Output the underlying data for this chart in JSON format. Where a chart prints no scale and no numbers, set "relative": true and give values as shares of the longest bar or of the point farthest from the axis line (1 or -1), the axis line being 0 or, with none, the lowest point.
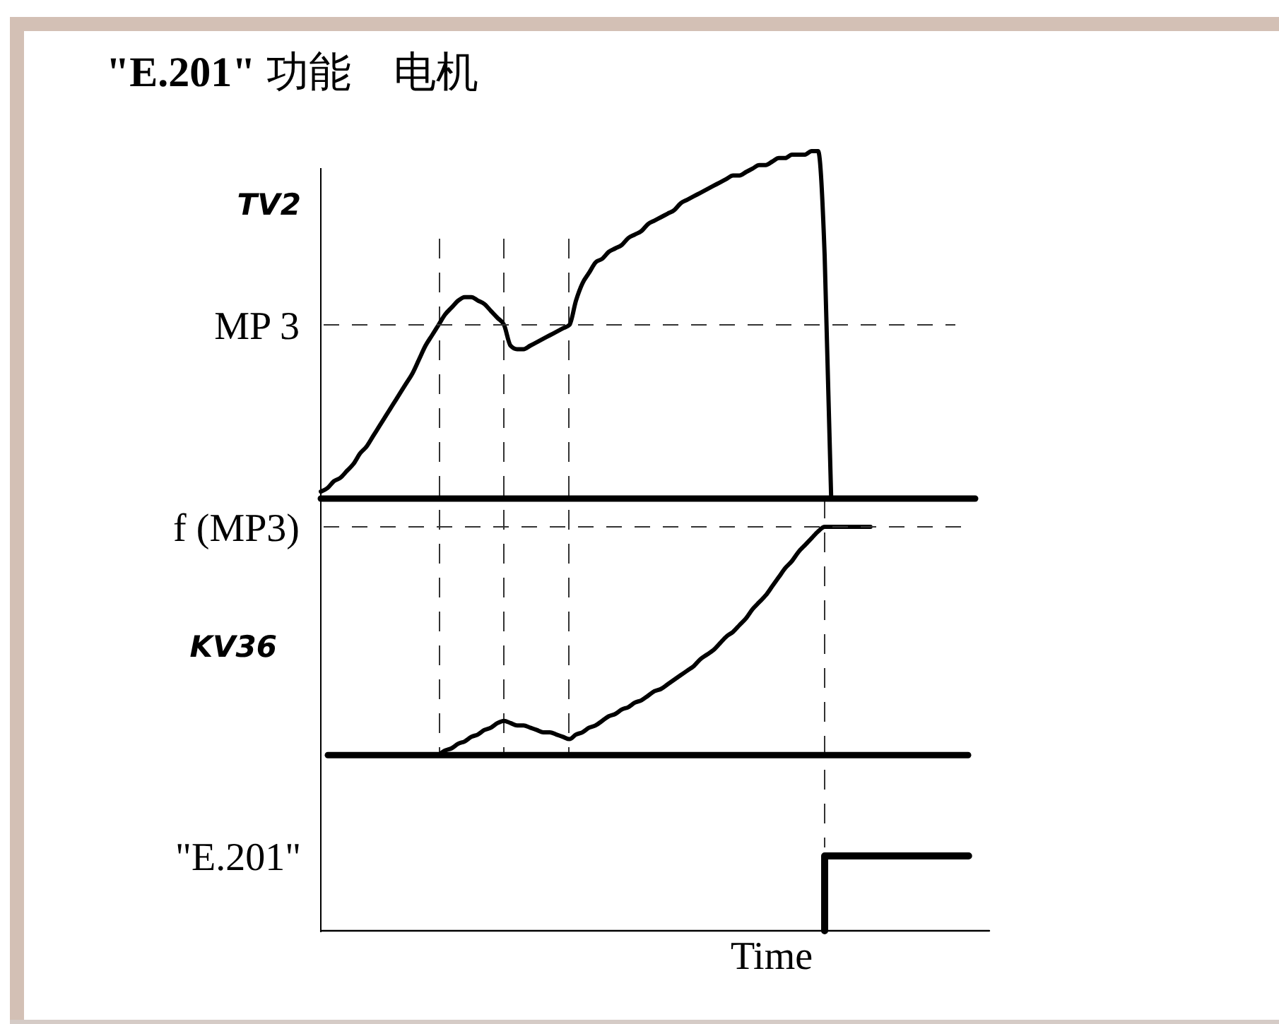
{
  "chart_data": [
    {
      "type": "line",
      "title": "\"E.201\" 功能　电机",
      "ylabel": "TV2",
      "relative": true,
      "categories": [
        null,
        null,
        null,
        null,
        null,
        null,
        null,
        null,
        null,
        null,
        null,
        null,
        null,
        null,
        null,
        null,
        null,
        null,
        null,
        null,
        null,
        null,
        null,
        null,
        null,
        null,
        null,
        null,
        null,
        null,
        null,
        null,
        null,
        null,
        null,
        null,
        null,
        null,
        null,
        null,
        null,
        null,
        null,
        null,
        null,
        null,
        null,
        null,
        null,
        null,
        null,
        null,
        null,
        null,
        null,
        null,
        null,
        null,
        null,
        null,
        null,
        null,
        null,
        null,
        null,
        null,
        null,
        null,
        null,
        null,
        null,
        null,
        null,
        null,
        null,
        null,
        null,
        null,
        null,
        null,
        null,
        null,
        null,
        null,
        null,
        null,
        null,
        null,
        null,
        null,
        null,
        null,
        null,
        null,
        null,
        null,
        null,
        null,
        null,
        null,
        null
      ],
      "series": [
        {
          "color": "#000000",
          "values": [
            0.02,
            0.03,
            0.05,
            0.06,
            0.08,
            0.1,
            0.13,
            0.15,
            0.18,
            0.21,
            0.24,
            0.27,
            0.3,
            0.33,
            0.36,
            0.4,
            0.44,
            0.47,
            0.5,
            0.53,
            0.55,
            0.57,
            0.58,
            0.58,
            0.57,
            0.56,
            0.54,
            0.52,
            0.5,
            0.44,
            0.43,
            0.43,
            0.44,
            0.45,
            0.46,
            0.47,
            0.48,
            0.49,
            0.5,
            0.57,
            0.62,
            0.65,
            0.68,
            0.69,
            0.71,
            0.72,
            0.73,
            0.75,
            0.76,
            0.77,
            0.79,
            0.8,
            0.81,
            0.82,
            0.83,
            0.85,
            0.86,
            0.87,
            0.88,
            0.89,
            0.9,
            0.91,
            0.92,
            0.93,
            0.93,
            0.94,
            0.95,
            0.96,
            0.96,
            0.97,
            0.98,
            0.98,
            0.99,
            0.99,
            0.99,
            1.0,
            1.0,
            0.7,
            0,
            null,
            null,
            null,
            null,
            null,
            null,
            null,
            null,
            null,
            null,
            null,
            null,
            null,
            null,
            null,
            null,
            null,
            null,
            null,
            null,
            null,
            null
          ]
        }
      ],
      "ref_lines": [
        {
          "axis": "y",
          "value": 0.5,
          "label": "MP 3",
          "line_style": "dashed",
          "color": "#333333"
        }
      ]
    },
    {
      "type": "line",
      "ylabel": "KV36",
      "relative": true,
      "categories": [
        null,
        null,
        null,
        null,
        null,
        null,
        null,
        null,
        null,
        null,
        null,
        null,
        null,
        null,
        null,
        null,
        null,
        null,
        null,
        null,
        null,
        null,
        null,
        null,
        null,
        null,
        null,
        null,
        null,
        null,
        null,
        null,
        null,
        null,
        null,
        null,
        null,
        null,
        null,
        null,
        null,
        null,
        null,
        null,
        null,
        null,
        null,
        null,
        null,
        null,
        null,
        null,
        null,
        null,
        null,
        null,
        null,
        null,
        null,
        null,
        null,
        null,
        null,
        null,
        null,
        null,
        null,
        null,
        null,
        null,
        null,
        null,
        null,
        null,
        null,
        null,
        null,
        null,
        null,
        null,
        null,
        null,
        null,
        null,
        null,
        null,
        null,
        null,
        null,
        null,
        null,
        null,
        null,
        null,
        null,
        null,
        null,
        null,
        null,
        null,
        null
      ],
      "series": [
        {
          "color": "#000000",
          "values": [
            null,
            null,
            null,
            null,
            null,
            null,
            null,
            null,
            null,
            null,
            null,
            null,
            null,
            null,
            null,
            null,
            null,
            null,
            0,
            0.02,
            0.03,
            0.05,
            0.06,
            0.08,
            0.09,
            0.11,
            0.12,
            0.14,
            0.15,
            0.14,
            0.13,
            0.13,
            0.12,
            0.11,
            0.1,
            0.1,
            0.09,
            0.08,
            0.07,
            0.09,
            0.1,
            0.12,
            0.13,
            0.15,
            0.17,
            0.18,
            0.2,
            0.21,
            0.23,
            0.24,
            0.26,
            0.28,
            0.29,
            0.31,
            0.33,
            0.35,
            0.37,
            0.39,
            0.42,
            0.44,
            0.46,
            0.49,
            0.52,
            0.54,
            0.57,
            0.6,
            0.64,
            0.67,
            0.7,
            0.74,
            0.78,
            0.82,
            0.85,
            0.89,
            0.92,
            0.95,
            0.98,
            1.0,
            1.0,
            1.0,
            1.0,
            1.0,
            1.0,
            1.0,
            1.0,
            null,
            null,
            null,
            null,
            null,
            null,
            null,
            null,
            null,
            null,
            null,
            null,
            null,
            null,
            null,
            null
          ]
        }
      ],
      "ref_lines": [
        {
          "axis": "y",
          "value": 1,
          "label": "f (MP3)",
          "line_style": "dashed",
          "color": "#333333"
        }
      ]
    },
    {
      "type": "step",
      "ylabel": "\"E.201\"",
      "xlabel": "Time",
      "relative": true,
      "categories": [
        null,
        null,
        null,
        null,
        null,
        null,
        null,
        null,
        null,
        null,
        null,
        null,
        null,
        null,
        null,
        null,
        null,
        null,
        null,
        null,
        null,
        null,
        null,
        null,
        null,
        null,
        null,
        null,
        null,
        null,
        null,
        null,
        null,
        null,
        null,
        null,
        null,
        null,
        null,
        null,
        null,
        null,
        null,
        null,
        null,
        null,
        null,
        null,
        null,
        null,
        null,
        null,
        null,
        null,
        null,
        null,
        null,
        null,
        null,
        null,
        null,
        null,
        null,
        null,
        null,
        null,
        null,
        null,
        null,
        null,
        null,
        null,
        null,
        null,
        null,
        null,
        null,
        null,
        null,
        null,
        null,
        null,
        null,
        null,
        null,
        null,
        null,
        null,
        null,
        null,
        null,
        null,
        null,
        null,
        null,
        null,
        null,
        null,
        null,
        null,
        null
      ],
      "series": [
        {
          "color": "#000000",
          "values": [
            null,
            null,
            null,
            null,
            null,
            null,
            null,
            null,
            null,
            null,
            null,
            null,
            null,
            null,
            null,
            null,
            null,
            null,
            null,
            null,
            null,
            null,
            null,
            null,
            null,
            null,
            null,
            null,
            null,
            null,
            null,
            null,
            null,
            null,
            null,
            null,
            null,
            null,
            null,
            null,
            null,
            null,
            null,
            null,
            null,
            null,
            null,
            null,
            null,
            null,
            null,
            null,
            null,
            null,
            null,
            null,
            null,
            null,
            null,
            null,
            null,
            null,
            null,
            null,
            null,
            null,
            null,
            null,
            null,
            null,
            null,
            null,
            null,
            null,
            null,
            null,
            null,
            0,
            1,
            1,
            1,
            1,
            1,
            1,
            1,
            1,
            1,
            1,
            1,
            1,
            1,
            1,
            1,
            1,
            1,
            1,
            1,
            1,
            1,
            1,
            null
          ]
        }
      ]
    }
  ]
}
